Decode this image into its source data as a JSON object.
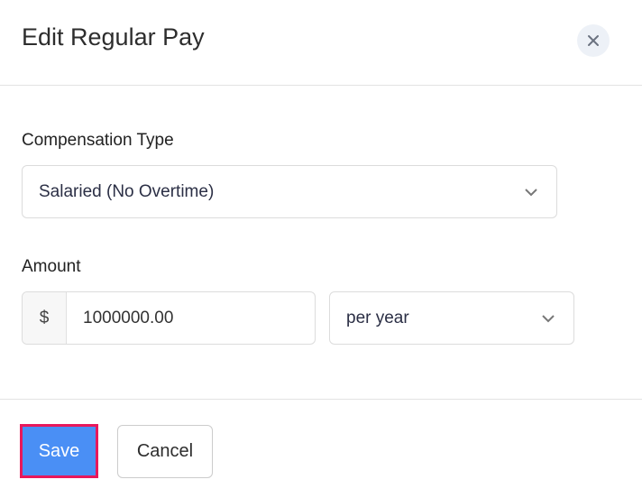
{
  "dialog": {
    "title": "Edit Regular Pay",
    "close_icon": "close-icon"
  },
  "form": {
    "compensation_type": {
      "label": "Compensation Type",
      "value": "Salaried (No Overtime)"
    },
    "amount": {
      "label": "Amount",
      "currency_symbol": "$",
      "value": "1000000.00",
      "period": "per year"
    }
  },
  "footer": {
    "save_label": "Save",
    "cancel_label": "Cancel"
  },
  "colors": {
    "primary": "#4a8ff5",
    "highlight_border": "#e8185b"
  }
}
